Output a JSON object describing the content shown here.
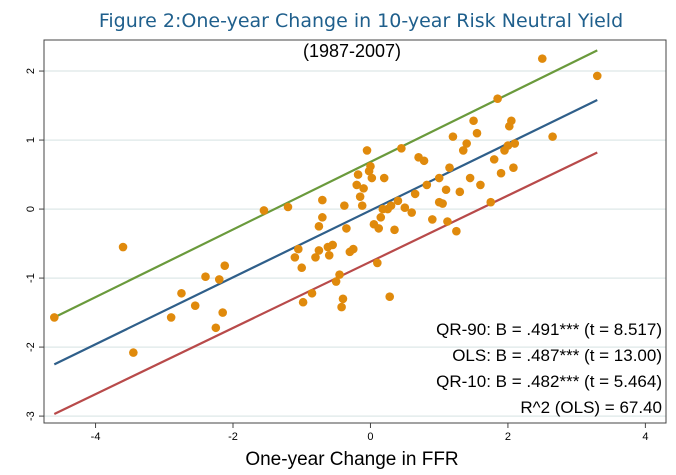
{
  "chart_data": {
    "type": "scatter",
    "title": "Figure 2:One-year Change in 10-year Risk Neutral Yield",
    "subtitle": "(1987-2007)",
    "xlabel": "One-year Change in FFR",
    "ylabel": "",
    "xlim": [
      -4.75,
      4.3
    ],
    "ylim": [
      -3.1,
      2.45
    ],
    "xticks": [
      -4,
      -2,
      0,
      2,
      4
    ],
    "yticks": [
      -3,
      -2,
      -1,
      0,
      1,
      2
    ],
    "x_tick_labels": [
      "-4",
      "-2",
      "0",
      "2",
      "4"
    ],
    "y_tick_labels": [
      "-3",
      "-2",
      "-1",
      "0",
      "1",
      "2"
    ],
    "grid": "horizontal",
    "colors": {
      "points": "#e08a0c",
      "qr90": "#6a9a3c",
      "ols": "#2f5f8a",
      "qr10": "#b84a4a",
      "grid": "#e3ecec",
      "title": "#1f5f8c"
    },
    "lines": [
      {
        "x": [
          -4.6,
          3.3
        ],
        "y": [
          -1.57,
          2.3
        ]
      },
      {
        "x": [
          -4.6,
          3.3
        ],
        "y": [
          -2.25,
          1.58
        ]
      },
      {
        "x": [
          -4.6,
          3.3
        ],
        "y": [
          -2.97,
          0.82
        ]
      }
    ],
    "annotations": [
      "QR-90: B = .491*** (t = 8.517)",
      "OLS: B = .487*** (t = 13.00)",
      "QR-10: B = .482*** (t = 5.464)",
      "R^2 (OLS) = 67.40"
    ],
    "points": [
      [
        -4.6,
        -1.57
      ],
      [
        -3.6,
        -0.55
      ],
      [
        -3.45,
        -2.08
      ],
      [
        -2.9,
        -1.57
      ],
      [
        -2.75,
        -1.22
      ],
      [
        -2.55,
        -1.4
      ],
      [
        -2.4,
        -0.98
      ],
      [
        -2.25,
        -1.72
      ],
      [
        -2.2,
        -1.02
      ],
      [
        -2.15,
        -1.5
      ],
      [
        -2.12,
        -0.82
      ],
      [
        -1.55,
        -0.02
      ],
      [
        -1.2,
        0.03
      ],
      [
        -1.1,
        -0.7
      ],
      [
        -1.05,
        -0.58
      ],
      [
        -1.0,
        -0.85
      ],
      [
        -0.98,
        -1.35
      ],
      [
        -0.85,
        -1.22
      ],
      [
        -0.8,
        -0.7
      ],
      [
        -0.75,
        -0.6
      ],
      [
        -0.75,
        -0.25
      ],
      [
        -0.7,
        -0.12
      ],
      [
        -0.7,
        0.13
      ],
      [
        -0.62,
        -0.55
      ],
      [
        -0.6,
        -0.67
      ],
      [
        -0.55,
        -0.52
      ],
      [
        -0.5,
        -1.05
      ],
      [
        -0.45,
        -0.95
      ],
      [
        -0.42,
        -1.42
      ],
      [
        -0.4,
        -1.3
      ],
      [
        -0.38,
        0.05
      ],
      [
        -0.35,
        -0.28
      ],
      [
        -0.3,
        -0.62
      ],
      [
        -0.25,
        -0.58
      ],
      [
        -0.2,
        0.35
      ],
      [
        -0.18,
        0.5
      ],
      [
        -0.15,
        0.18
      ],
      [
        -0.12,
        0.05
      ],
      [
        -0.1,
        0.3
      ],
      [
        -0.05,
        0.85
      ],
      [
        -0.02,
        0.55
      ],
      [
        0.0,
        0.62
      ],
      [
        0.02,
        0.45
      ],
      [
        0.05,
        -0.22
      ],
      [
        0.1,
        -0.78
      ],
      [
        0.12,
        -0.28
      ],
      [
        0.15,
        -0.12
      ],
      [
        0.18,
        0.0
      ],
      [
        0.2,
        0.45
      ],
      [
        0.25,
        0.0
      ],
      [
        0.28,
        -1.27
      ],
      [
        0.3,
        0.05
      ],
      [
        0.35,
        -0.3
      ],
      [
        0.4,
        0.12
      ],
      [
        0.45,
        0.88
      ],
      [
        0.5,
        0.02
      ],
      [
        0.6,
        -0.05
      ],
      [
        0.65,
        0.22
      ],
      [
        0.7,
        0.75
      ],
      [
        0.78,
        0.7
      ],
      [
        0.82,
        0.35
      ],
      [
        0.9,
        -0.15
      ],
      [
        1.0,
        0.1
      ],
      [
        1.0,
        0.45
      ],
      [
        1.05,
        0.08
      ],
      [
        1.1,
        0.28
      ],
      [
        1.12,
        -0.18
      ],
      [
        1.15,
        0.6
      ],
      [
        1.2,
        1.05
      ],
      [
        1.25,
        -0.32
      ],
      [
        1.3,
        0.25
      ],
      [
        1.35,
        0.85
      ],
      [
        1.4,
        0.95
      ],
      [
        1.45,
        0.45
      ],
      [
        1.5,
        1.28
      ],
      [
        1.55,
        1.1
      ],
      [
        1.6,
        0.35
      ],
      [
        1.75,
        0.1
      ],
      [
        1.8,
        0.72
      ],
      [
        1.85,
        1.6
      ],
      [
        1.9,
        0.52
      ],
      [
        1.95,
        0.85
      ],
      [
        2.0,
        0.92
      ],
      [
        2.02,
        1.2
      ],
      [
        2.05,
        1.28
      ],
      [
        2.08,
        0.6
      ],
      [
        2.1,
        0.95
      ],
      [
        2.5,
        2.18
      ],
      [
        2.65,
        1.05
      ],
      [
        3.3,
        1.93
      ]
    ]
  }
}
